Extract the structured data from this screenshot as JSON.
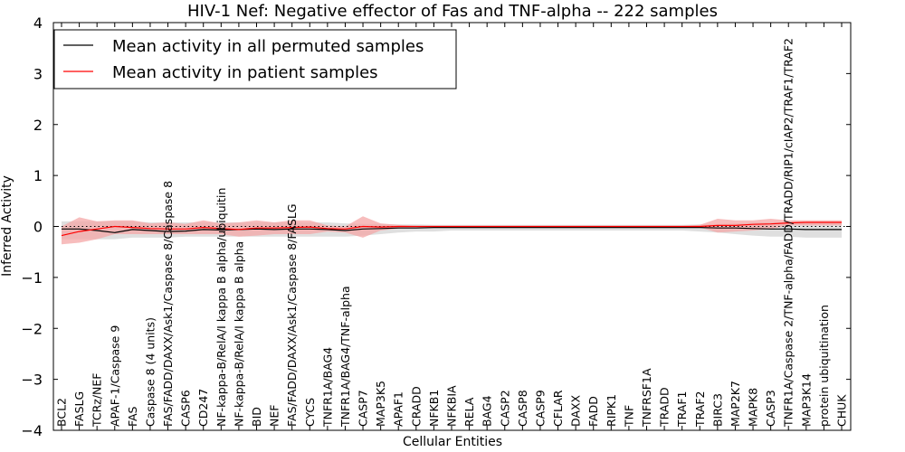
{
  "chart_data": {
    "type": "line",
    "title": "HIV-1 Nef: Negative effector of Fas and TNF-alpha -- 222 samples",
    "xlabel": "Cellular Entities",
    "ylabel": "Inferred Activity",
    "ylim": [
      -4,
      4
    ],
    "yticks": [
      "-4",
      "-3",
      "-2",
      "-1",
      "0",
      "1",
      "2",
      "3",
      "4"
    ],
    "grid": false,
    "legend_position": "top-left",
    "categories": [
      "BCL2",
      "FASLG",
      "TCRz/NEF",
      "APAF-1/Caspase 9",
      "FAS",
      "Caspase 8 (4 units)",
      "FAS/FADD/DAXX/Ask1/Caspase 8/Caspase 8",
      "CASP6",
      "CD247",
      "NF-kappa-B/RelA/I kappa B alpha/ubiquitin",
      "NF-kappa-B/RelA/I kappa B alpha",
      "BID",
      "NEF",
      "FAS/FADD/DAXX/Ask1/Caspase 8/FASLG",
      "CYCS",
      "TNFR1A/BAG4",
      "TNFR1A/BAG4/TNF-alpha",
      "CASP7",
      "MAP3K5",
      "APAF1",
      "CRADD",
      "NFKB1",
      "NFKBIA",
      "RELA",
      "BAG4",
      "CASP2",
      "CASP8",
      "CASP9",
      "CFLAR",
      "DAXX",
      "FADD",
      "RIPK1",
      "TNF",
      "TNFRSF1A",
      "TRADD",
      "TRAF1",
      "TRAF2",
      "BIRC3",
      "MAP2K7",
      "MAPK8",
      "CASP3",
      "TNFR1A/Caspase 2/TNF-alpha/FADD/TRADD/RIP1/cIAP2/TRAF1/TRAF2",
      "MAP3K14",
      "protein ubiquitination",
      "CHUK"
    ],
    "series": [
      {
        "name": "Mean activity in all permuted samples",
        "color": "#000000",
        "band_color": "#d9d9d9",
        "values": [
          -0.05,
          -0.05,
          -0.08,
          -0.12,
          -0.06,
          -0.08,
          -0.1,
          -0.09,
          -0.06,
          -0.07,
          -0.06,
          -0.05,
          -0.06,
          -0.05,
          -0.05,
          -0.06,
          -0.08,
          -0.05,
          -0.04,
          -0.03,
          -0.03,
          -0.02,
          -0.02,
          -0.02,
          -0.02,
          -0.02,
          -0.02,
          -0.02,
          -0.02,
          -0.02,
          -0.02,
          -0.02,
          -0.02,
          -0.02,
          -0.02,
          -0.02,
          -0.02,
          -0.03,
          -0.03,
          -0.04,
          -0.05,
          -0.05,
          -0.06,
          -0.06,
          -0.06
        ],
        "lower": [
          -0.25,
          -0.25,
          -0.25,
          -0.25,
          -0.22,
          -0.22,
          -0.22,
          -0.2,
          -0.2,
          -0.2,
          -0.2,
          -0.2,
          -0.2,
          -0.2,
          -0.2,
          -0.2,
          -0.2,
          -0.18,
          -0.15,
          -0.12,
          -0.1,
          -0.1,
          -0.08,
          -0.08,
          -0.08,
          -0.08,
          -0.08,
          -0.08,
          -0.08,
          -0.08,
          -0.08,
          -0.08,
          -0.08,
          -0.08,
          -0.08,
          -0.08,
          -0.1,
          -0.12,
          -0.15,
          -0.18,
          -0.2,
          -0.2,
          -0.22,
          -0.22,
          -0.22
        ],
        "upper": [
          0.1,
          0.1,
          0.1,
          0.1,
          0.1,
          0.08,
          0.08,
          0.08,
          0.08,
          0.08,
          0.08,
          0.08,
          0.08,
          0.08,
          0.08,
          0.08,
          0.06,
          0.05,
          0.05,
          0.04,
          0.04,
          0.03,
          0.03,
          0.03,
          0.03,
          0.03,
          0.03,
          0.03,
          0.03,
          0.03,
          0.03,
          0.03,
          0.03,
          0.03,
          0.03,
          0.03,
          0.04,
          0.05,
          0.06,
          0.08,
          0.08,
          0.08,
          0.08,
          0.08,
          0.08
        ]
      },
      {
        "name": "Mean activity in patient samples",
        "color": "#ff0000",
        "band_color": "#f4a7a7",
        "values": [
          -0.18,
          -0.1,
          -0.05,
          0.0,
          -0.02,
          -0.04,
          -0.05,
          -0.05,
          -0.02,
          -0.04,
          -0.06,
          -0.03,
          -0.03,
          -0.02,
          -0.01,
          -0.04,
          -0.05,
          0.0,
          -0.01,
          0.0,
          0.0,
          0.0,
          0.0,
          0.0,
          0.0,
          0.0,
          0.0,
          0.0,
          0.0,
          0.0,
          0.0,
          0.0,
          0.0,
          0.0,
          0.0,
          0.0,
          0.0,
          0.02,
          0.02,
          0.04,
          0.05,
          0.07,
          0.08,
          0.08,
          0.08
        ],
        "lower": [
          -0.35,
          -0.32,
          -0.25,
          -0.15,
          -0.15,
          -0.15,
          -0.15,
          -0.15,
          -0.15,
          -0.15,
          -0.2,
          -0.18,
          -0.15,
          -0.15,
          -0.15,
          -0.1,
          -0.12,
          -0.22,
          -0.08,
          -0.04,
          -0.02,
          -0.01,
          -0.01,
          -0.01,
          -0.01,
          -0.01,
          -0.01,
          -0.01,
          -0.01,
          -0.01,
          -0.01,
          -0.01,
          -0.01,
          -0.01,
          -0.01,
          -0.01,
          -0.02,
          -0.12,
          -0.1,
          -0.08,
          -0.05,
          0.02,
          0.02,
          0.02,
          0.02
        ],
        "upper": [
          0.0,
          0.18,
          0.1,
          0.12,
          0.12,
          0.06,
          0.08,
          0.05,
          0.12,
          0.06,
          0.08,
          0.12,
          0.08,
          0.12,
          0.12,
          0.02,
          0.0,
          0.2,
          0.06,
          0.03,
          0.01,
          0.01,
          0.01,
          0.01,
          0.01,
          0.01,
          0.01,
          0.01,
          0.01,
          0.01,
          0.01,
          0.01,
          0.01,
          0.01,
          0.01,
          0.01,
          0.03,
          0.15,
          0.12,
          0.12,
          0.15,
          0.12,
          0.12,
          0.12,
          0.12
        ]
      }
    ],
    "reference_line": {
      "y": 0,
      "style": "dotted"
    }
  }
}
